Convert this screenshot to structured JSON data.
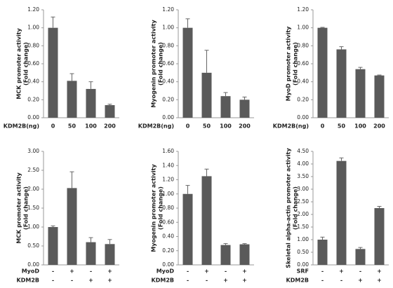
{
  "chart_data": [
    {
      "type": "bar",
      "y_label": [
        "MCK promoter activity",
        "(Fold change)"
      ],
      "x_label": "KDM2B(ng)",
      "categories": [
        "0",
        "50",
        "100",
        "200"
      ],
      "values": [
        1.0,
        0.41,
        0.32,
        0.14
      ],
      "errors": [
        0.12,
        0.08,
        0.08,
        0.01
      ],
      "color": "#5a5a5a",
      "ylim": [
        0,
        1.2
      ],
      "yticks": [
        {
          "value": 0,
          "label": "0.00"
        },
        {
          "value": 0.2,
          "label": "0.20"
        },
        {
          "value": 0.4,
          "label": "0.40"
        },
        {
          "value": 0.6,
          "label": "0.60"
        },
        {
          "value": 0.8,
          "label": "0.80"
        },
        {
          "value": 1.0,
          "label": "1.00"
        },
        {
          "value": 1.2,
          "label": "1.20"
        }
      ]
    },
    {
      "type": "bar",
      "y_label": [
        "Myogenin promoter activity",
        "(Fold change)"
      ],
      "x_label": "KDM2B(ng)",
      "categories": [
        "0",
        "50",
        "100",
        "200"
      ],
      "values": [
        1.0,
        0.5,
        0.24,
        0.2
      ],
      "errors": [
        0.1,
        0.25,
        0.04,
        0.03
      ],
      "color": "#5a5a5a",
      "ylim": [
        0,
        1.2
      ],
      "yticks": [
        {
          "value": 0,
          "label": "0.00"
        },
        {
          "value": 0.2,
          "label": "0.20"
        },
        {
          "value": 0.4,
          "label": "0.40"
        },
        {
          "value": 0.6,
          "label": "0.60"
        },
        {
          "value": 0.8,
          "label": "0.80"
        },
        {
          "value": 1.0,
          "label": "1.00"
        },
        {
          "value": 1.2,
          "label": "1.20"
        }
      ]
    },
    {
      "type": "bar",
      "y_label": [
        "MyoD promoter activity",
        "(Fold change)"
      ],
      "x_label": "KDM2B(ng)",
      "categories": [
        "0",
        "50",
        "100",
        "200"
      ],
      "values": [
        1.0,
        0.76,
        0.54,
        0.47
      ],
      "errors": [
        0.005,
        0.03,
        0.02,
        0.005
      ],
      "color": "#5a5a5a",
      "ylim": [
        0,
        1.2
      ],
      "yticks": [
        {
          "value": 0,
          "label": "0.00"
        },
        {
          "value": 0.2,
          "label": "0.20"
        },
        {
          "value": 0.4,
          "label": "0.40"
        },
        {
          "value": 0.6,
          "label": "0.60"
        },
        {
          "value": 0.8,
          "label": "0.80"
        },
        {
          "value": 1.0,
          "label": "1.00"
        },
        {
          "value": 1.2,
          "label": "1.20"
        }
      ]
    },
    {
      "type": "bar",
      "y_label": [
        "MCK promoter activity",
        "(Fold change)"
      ],
      "category_rows": [
        {
          "label": "MyoD",
          "values": [
            "-",
            "+",
            "-",
            "+"
          ]
        },
        {
          "label": "KDM2B",
          "values": [
            "-",
            "-",
            "+",
            "+"
          ]
        }
      ],
      "values": [
        1.0,
        2.03,
        0.6,
        0.55
      ],
      "errors": [
        0.03,
        0.43,
        0.12,
        0.12
      ],
      "color": "#5a5a5a",
      "ylim": [
        0,
        3.0
      ],
      "yticks": [
        {
          "value": 0,
          "label": "0.00"
        },
        {
          "value": 0.5,
          "label": "0.50"
        },
        {
          "value": 1.0,
          "label": "1.00"
        },
        {
          "value": 1.5,
          "label": "1.50"
        },
        {
          "value": 2.0,
          "label": "2.00"
        },
        {
          "value": 2.5,
          "label": "2.50"
        },
        {
          "value": 3.0,
          "label": "3.00"
        }
      ]
    },
    {
      "type": "bar",
      "y_label": [
        "Myogenin promoter activity",
        "(Fold change)"
      ],
      "category_rows": [
        {
          "label": "MyoD",
          "values": [
            "-",
            "+",
            "-",
            "+"
          ]
        },
        {
          "label": "KDM2B",
          "values": [
            "-",
            "-",
            "+",
            "+"
          ]
        }
      ],
      "values": [
        1.0,
        1.25,
        0.28,
        0.29
      ],
      "errors": [
        0.12,
        0.1,
        0.02,
        0.01
      ],
      "color": "#5a5a5a",
      "ylim": [
        0,
        1.6
      ],
      "yticks": [
        {
          "value": 0,
          "label": "0.00"
        },
        {
          "value": 0.2,
          "label": "0.20"
        },
        {
          "value": 0.4,
          "label": "0.40"
        },
        {
          "value": 0.6,
          "label": "0.60"
        },
        {
          "value": 0.8,
          "label": "0.80"
        },
        {
          "value": 1.0,
          "label": "1.00"
        },
        {
          "value": 1.2,
          "label": "1.20"
        },
        {
          "value": 1.4,
          "label": "1.40"
        },
        {
          "value": 1.6,
          "label": "1.60"
        }
      ]
    },
    {
      "type": "bar",
      "y_label": [
        "Skeletal alpha-actin promoter activity",
        "(Fold change)"
      ],
      "category_rows": [
        {
          "label": "SRF",
          "values": [
            "-",
            "+",
            "-",
            "+"
          ]
        },
        {
          "label": "KDM2B",
          "values": [
            "-",
            "-",
            "+",
            "+"
          ]
        }
      ],
      "values": [
        1.0,
        4.12,
        0.63,
        2.25
      ],
      "errors": [
        0.1,
        0.12,
        0.06,
        0.07
      ],
      "color": "#5a5a5a",
      "ylim": [
        0,
        4.5
      ],
      "yticks": [
        {
          "value": 0,
          "label": "0.00"
        },
        {
          "value": 0.5,
          "label": "0.50"
        },
        {
          "value": 1.0,
          "label": "1.00"
        },
        {
          "value": 1.5,
          "label": "1.50"
        },
        {
          "value": 2.0,
          "label": "2.00"
        },
        {
          "value": 2.5,
          "label": "2.50"
        },
        {
          "value": 3.0,
          "label": "3.00"
        },
        {
          "value": 3.5,
          "label": "3.50"
        },
        {
          "value": 4.0,
          "label": "4.00"
        },
        {
          "value": 4.5,
          "label": "4.50"
        }
      ]
    }
  ]
}
